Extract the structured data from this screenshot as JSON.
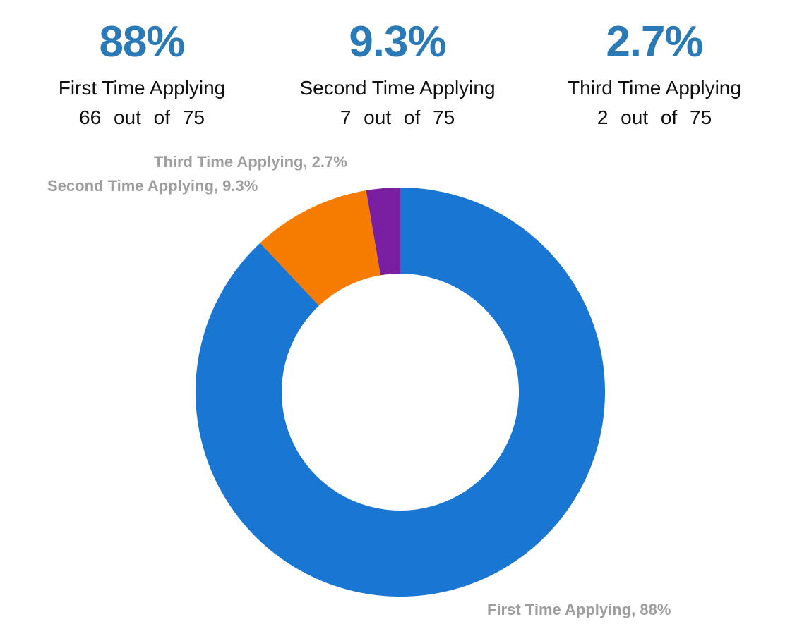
{
  "stats": [
    {
      "percent": "88%",
      "label": "First Time Applying",
      "count": "66",
      "out_of": "out of",
      "total": "75"
    },
    {
      "percent": "9.3%",
      "label": "Second Time Applying",
      "count": "7",
      "out_of": "out of",
      "total": "75"
    },
    {
      "percent": "2.7%",
      "label": "Third Time Applying",
      "count": "2",
      "out_of": "out of",
      "total": "75"
    }
  ],
  "chart_data": {
    "type": "pie",
    "donut": true,
    "categories": [
      "First Time Applying",
      "Second Time Applying",
      "Third Time Applying"
    ],
    "values": [
      66,
      7,
      2
    ],
    "percent_labels": [
      "First Time Applying, 88%",
      "Second Time Applying, 9.3%",
      "Third Time Applying, 2.7%"
    ],
    "colors": [
      "#1976D2",
      "#F57C00",
      "#7B1FA2"
    ],
    "start": "top",
    "direction": "clockwise"
  }
}
